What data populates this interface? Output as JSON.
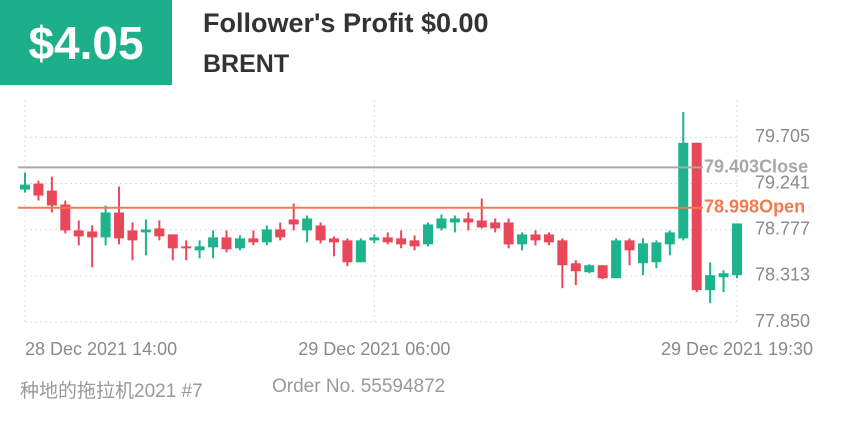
{
  "header": {
    "amount": "$4.05",
    "profit_label": "Follower's Profit $0.00",
    "symbol": "BRENT"
  },
  "chart_data": {
    "type": "candlestick",
    "categories": [
      "28 Dec 2021 14:00",
      null,
      null,
      null,
      null,
      null,
      null,
      null,
      null,
      null,
      null,
      null,
      null,
      null,
      null,
      null,
      null,
      null,
      null,
      null,
      null,
      null,
      null,
      null,
      null,
      null,
      "29 Dec 2021 06:00",
      null,
      null,
      null,
      null,
      null,
      null,
      null,
      null,
      null,
      null,
      null,
      null,
      null,
      null,
      null,
      null,
      null,
      null,
      null,
      null,
      null,
      null,
      null,
      null,
      null,
      null,
      "29 Dec 2021 19:30"
    ],
    "open": [
      79.18,
      79.24,
      79.17,
      79.03,
      78.77,
      78.76,
      78.7,
      78.95,
      78.77,
      78.75,
      78.79,
      78.73,
      78.61,
      78.57,
      78.6,
      78.7,
      78.59,
      78.69,
      78.65,
      78.78,
      78.88,
      78.77,
      78.82,
      78.69,
      78.67,
      78.45,
      78.67,
      78.7,
      78.69,
      78.67,
      78.63,
      78.79,
      78.85,
      78.89,
      78.87,
      78.85,
      78.85,
      78.63,
      78.73,
      78.73,
      78.67,
      78.44,
      78.35,
      78.42,
      78.29,
      78.67,
      78.44,
      78.45,
      78.63,
      78.69,
      79.65,
      78.17,
      78.3,
      78.32
    ],
    "high": [
      79.35,
      79.27,
      79.31,
      79.07,
      78.87,
      78.82,
      79.02,
      79.21,
      78.85,
      78.88,
      78.87,
      78.73,
      78.67,
      78.67,
      78.77,
      78.77,
      78.72,
      78.77,
      78.82,
      78.85,
      79.04,
      78.92,
      78.85,
      78.71,
      78.69,
      78.69,
      78.73,
      78.75,
      78.77,
      78.72,
      78.85,
      78.93,
      78.92,
      78.95,
      79.09,
      78.89,
      78.89,
      78.75,
      78.77,
      78.75,
      78.69,
      78.47,
      78.43,
      78.42,
      78.69,
      78.69,
      78.69,
      78.67,
      78.77,
      79.96,
      79.65,
      78.45,
      78.37,
      78.84
    ],
    "low": [
      79.15,
      79.07,
      78.95,
      78.74,
      78.62,
      78.4,
      78.62,
      78.63,
      78.47,
      78.52,
      78.67,
      78.47,
      78.47,
      78.49,
      78.49,
      78.55,
      78.57,
      78.62,
      78.62,
      78.67,
      78.77,
      78.65,
      78.64,
      78.51,
      78.41,
      78.45,
      78.64,
      78.63,
      78.59,
      78.57,
      78.61,
      78.77,
      78.75,
      78.77,
      78.79,
      78.75,
      78.59,
      78.57,
      78.62,
      78.62,
      78.19,
      78.22,
      78.34,
      78.28,
      78.29,
      78.42,
      78.32,
      78.39,
      78.52,
      78.67,
      78.15,
      78.04,
      78.15,
      78.29
    ],
    "close": [
      79.23,
      79.12,
      79.02,
      78.77,
      78.71,
      78.7,
      78.95,
      78.69,
      78.67,
      78.78,
      78.71,
      78.59,
      78.59,
      78.61,
      78.7,
      78.58,
      78.69,
      78.65,
      78.78,
      78.7,
      78.83,
      78.89,
      78.67,
      78.65,
      78.45,
      78.67,
      78.7,
      78.65,
      78.63,
      78.61,
      78.83,
      78.89,
      78.89,
      78.85,
      78.8,
      78.79,
      78.63,
      78.73,
      78.67,
      78.65,
      78.42,
      78.36,
      78.42,
      78.29,
      78.67,
      78.57,
      78.64,
      78.65,
      78.75,
      79.65,
      78.17,
      78.32,
      78.34,
      78.84
    ],
    "up_color": "#1db38d",
    "down_color": "#e8485a",
    "ylim": [
      77.85,
      80.08
    ],
    "yticks": [
      79.705,
      79.241,
      78.777,
      78.313,
      {
        "value": 77.85,
        "label": "77.850"
      }
    ],
    "grid": true,
    "reference_lines": [
      {
        "value": 79.403,
        "label": "Close",
        "color": "#a8a8a8"
      },
      {
        "value": 78.998,
        "label": "Open",
        "color": "#f47a4e"
      }
    ]
  },
  "footer": {
    "user": "种地的拖拉机2021 #7",
    "order": "Order No. 55594872"
  }
}
